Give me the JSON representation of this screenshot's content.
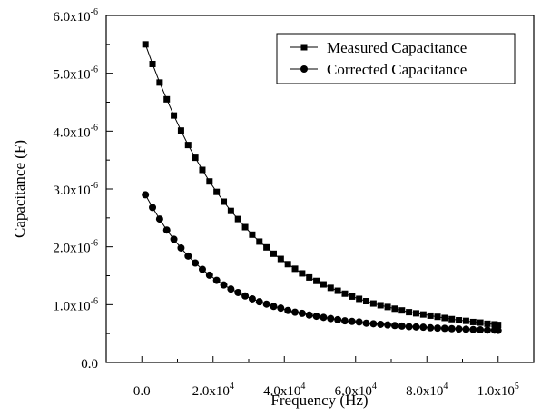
{
  "chart_data": {
    "type": "scatter",
    "title": "",
    "xlabel": "Frequency (Hz)",
    "ylabel": "Capacitance (F)",
    "xlim": [
      -10000,
      110000
    ],
    "ylim": [
      0,
      6e-06
    ],
    "grid": false,
    "legend_position": "top-right",
    "x_ticks": [
      {
        "value": 0,
        "label": "0.0"
      },
      {
        "value": 20000,
        "mant": "2.0x10",
        "exp": "4"
      },
      {
        "value": 40000,
        "mant": "4.0x10",
        "exp": "4"
      },
      {
        "value": 60000,
        "mant": "6.0x10",
        "exp": "4"
      },
      {
        "value": 80000,
        "mant": "8.0x10",
        "exp": "4"
      },
      {
        "value": 100000,
        "mant": "1.0x10",
        "exp": "5"
      }
    ],
    "y_ticks": [
      {
        "value": 0,
        "label": "0.0"
      },
      {
        "value": 1e-06,
        "mant": "1.0x10",
        "exp": "-6"
      },
      {
        "value": 2e-06,
        "mant": "2.0x10",
        "exp": "-6"
      },
      {
        "value": 3e-06,
        "mant": "3.0x10",
        "exp": "-6"
      },
      {
        "value": 4e-06,
        "mant": "4.0x10",
        "exp": "-6"
      },
      {
        "value": 5e-06,
        "mant": "5.0x10",
        "exp": "-6"
      },
      {
        "value": 6e-06,
        "mant": "6.0x10",
        "exp": "-6"
      }
    ],
    "series": [
      {
        "name": "Measured Capacitance",
        "marker": "square",
        "color": "#000000",
        "x": [
          1000,
          3000,
          5000,
          7000,
          9000,
          11000,
          13000,
          15000,
          17000,
          19000,
          21000,
          23000,
          25000,
          27000,
          29000,
          31000,
          33000,
          35000,
          37000,
          39000,
          41000,
          43000,
          45000,
          47000,
          49000,
          51000,
          53000,
          55000,
          57000,
          59000,
          61000,
          63000,
          65000,
          67000,
          69000,
          71000,
          73000,
          75000,
          77000,
          79000,
          81000,
          83000,
          85000,
          87000,
          89000,
          91000,
          93000,
          95000,
          97000,
          99000,
          100000
        ],
        "y": [
          5.5e-06,
          5.16e-06,
          4.84e-06,
          4.55e-06,
          4.27e-06,
          4.01e-06,
          3.76e-06,
          3.54e-06,
          3.33e-06,
          3.13e-06,
          2.95e-06,
          2.78e-06,
          2.62e-06,
          2.48e-06,
          2.34e-06,
          2.21e-06,
          2.09e-06,
          1.99e-06,
          1.88e-06,
          1.79e-06,
          1.7e-06,
          1.62e-06,
          1.54e-06,
          1.47e-06,
          1.41e-06,
          1.35e-06,
          1.29e-06,
          1.24e-06,
          1.19e-06,
          1.14e-06,
          1.1e-06,
          1.06e-06,
          1.02e-06,
          9.9e-07,
          9.6e-07,
          9.3e-07,
          9e-07,
          8.7e-07,
          8.5e-07,
          8.3e-07,
          8.1e-07,
          7.9e-07,
          7.7e-07,
          7.5e-07,
          7.3e-07,
          7.2e-07,
          7e-07,
          6.9e-07,
          6.7e-07,
          6.6e-07,
          6.5e-07
        ]
      },
      {
        "name": "Corrected Capacitance",
        "marker": "circle",
        "color": "#000000",
        "x": [
          1000,
          3000,
          5000,
          7000,
          9000,
          11000,
          13000,
          15000,
          17000,
          19000,
          21000,
          23000,
          25000,
          27000,
          29000,
          31000,
          33000,
          35000,
          37000,
          39000,
          41000,
          43000,
          45000,
          47000,
          49000,
          51000,
          53000,
          55000,
          57000,
          59000,
          61000,
          63000,
          65000,
          67000,
          69000,
          71000,
          73000,
          75000,
          77000,
          79000,
          81000,
          83000,
          85000,
          87000,
          89000,
          91000,
          93000,
          95000,
          97000,
          99000,
          100000
        ],
        "y": [
          2.9e-06,
          2.68e-06,
          2.48e-06,
          2.29e-06,
          2.13e-06,
          1.98e-06,
          1.84e-06,
          1.72e-06,
          1.61e-06,
          1.51e-06,
          1.42e-06,
          1.34e-06,
          1.27e-06,
          1.21e-06,
          1.15e-06,
          1.1e-06,
          1.05e-06,
          1.01e-06,
          9.7e-07,
          9.4e-07,
          9e-07,
          8.7e-07,
          8.5e-07,
          8.2e-07,
          8e-07,
          7.8e-07,
          7.6e-07,
          7.4e-07,
          7.2e-07,
          7.1e-07,
          7e-07,
          6.8e-07,
          6.7e-07,
          6.6e-07,
          6.5e-07,
          6.4e-07,
          6.3e-07,
          6.2e-07,
          6.15e-07,
          6.1e-07,
          6e-07,
          5.95e-07,
          5.9e-07,
          5.85e-07,
          5.8e-07,
          5.75e-07,
          5.7e-07,
          5.65e-07,
          5.6e-07,
          5.6e-07,
          5.55e-07
        ]
      }
    ]
  }
}
